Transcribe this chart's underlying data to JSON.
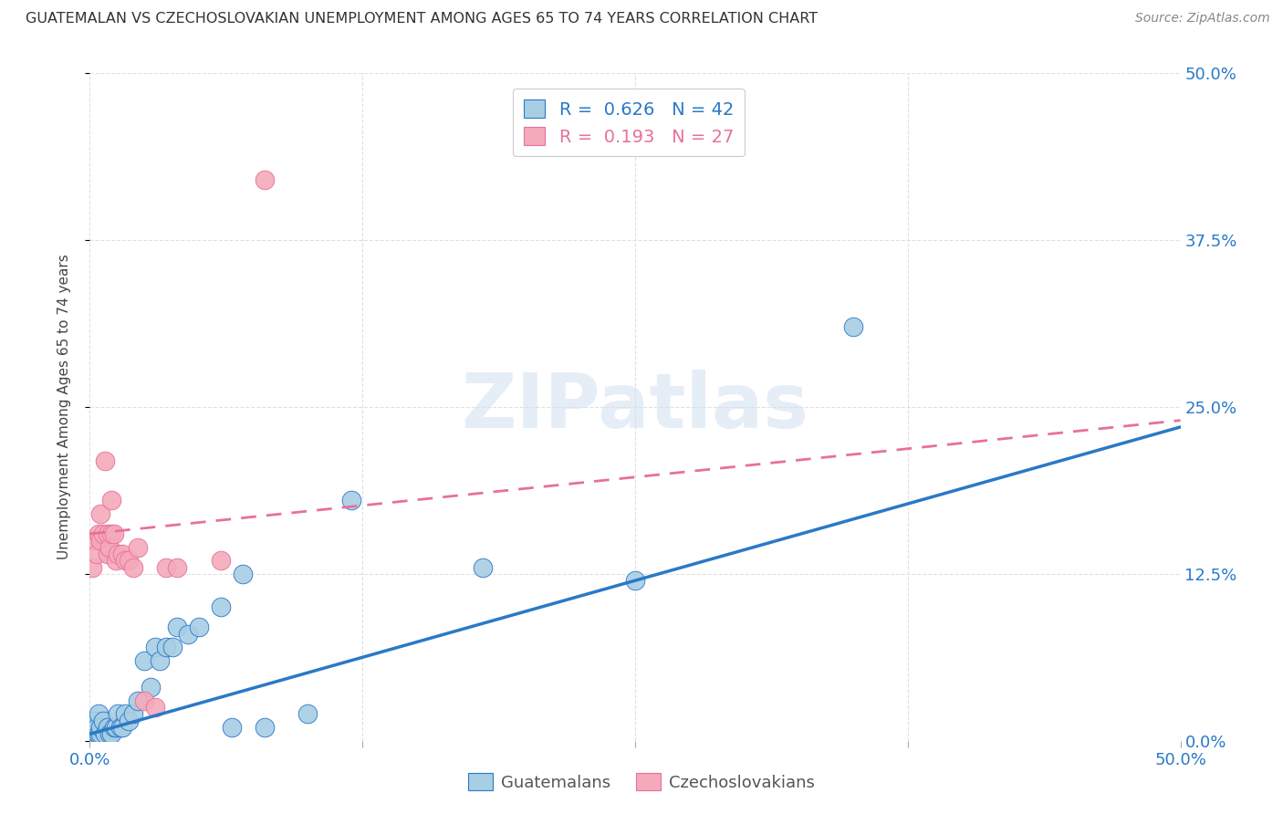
{
  "title": "GUATEMALAN VS CZECHOSLOVAKIAN UNEMPLOYMENT AMONG AGES 65 TO 74 YEARS CORRELATION CHART",
  "source": "Source: ZipAtlas.com",
  "ylabel": "Unemployment Among Ages 65 to 74 years",
  "legend_label1": "Guatemalans",
  "legend_label2": "Czechoslovakians",
  "R1": 0.626,
  "N1": 42,
  "R2": 0.193,
  "N2": 27,
  "color_blue": "#A8CEE4",
  "color_pink": "#F4AABB",
  "line_color_blue": "#2979C8",
  "line_color_pink": "#E8709A",
  "scatter_blue_x": [
    0.001,
    0.001,
    0.002,
    0.002,
    0.003,
    0.003,
    0.004,
    0.004,
    0.005,
    0.005,
    0.006,
    0.007,
    0.008,
    0.009,
    0.01,
    0.011,
    0.012,
    0.013,
    0.014,
    0.015,
    0.016,
    0.018,
    0.02,
    0.022,
    0.025,
    0.028,
    0.03,
    0.032,
    0.035,
    0.038,
    0.04,
    0.045,
    0.05,
    0.06,
    0.065,
    0.07,
    0.08,
    0.1,
    0.12,
    0.18,
    0.25,
    0.35
  ],
  "scatter_blue_y": [
    0.005,
    0.01,
    0.005,
    0.015,
    0.005,
    0.01,
    0.005,
    0.02,
    0.005,
    0.01,
    0.015,
    0.005,
    0.01,
    0.005,
    0.005,
    0.01,
    0.01,
    0.02,
    0.01,
    0.01,
    0.02,
    0.015,
    0.02,
    0.03,
    0.06,
    0.04,
    0.07,
    0.06,
    0.07,
    0.07,
    0.085,
    0.08,
    0.085,
    0.1,
    0.01,
    0.125,
    0.01,
    0.02,
    0.18,
    0.13,
    0.12,
    0.31
  ],
  "scatter_pink_x": [
    0.001,
    0.002,
    0.003,
    0.004,
    0.005,
    0.005,
    0.006,
    0.007,
    0.008,
    0.008,
    0.009,
    0.01,
    0.01,
    0.011,
    0.012,
    0.013,
    0.015,
    0.016,
    0.018,
    0.02,
    0.022,
    0.025,
    0.03,
    0.035,
    0.04,
    0.06,
    0.08
  ],
  "scatter_pink_y": [
    0.13,
    0.15,
    0.14,
    0.155,
    0.15,
    0.17,
    0.155,
    0.21,
    0.14,
    0.155,
    0.145,
    0.155,
    0.18,
    0.155,
    0.135,
    0.14,
    0.14,
    0.135,
    0.135,
    0.13,
    0.145,
    0.03,
    0.025,
    0.13,
    0.13,
    0.135,
    0.42
  ],
  "blue_line_x": [
    0.0,
    0.5
  ],
  "blue_line_y": [
    0.005,
    0.235
  ],
  "pink_line_x": [
    0.0,
    0.5
  ],
  "pink_line_y": [
    0.155,
    0.24
  ],
  "xlim": [
    0.0,
    0.5
  ],
  "ylim": [
    0.0,
    0.5
  ],
  "watermark_text": "ZIPatlas",
  "background_color": "#FFFFFF",
  "grid_color": "#DDDDDD"
}
